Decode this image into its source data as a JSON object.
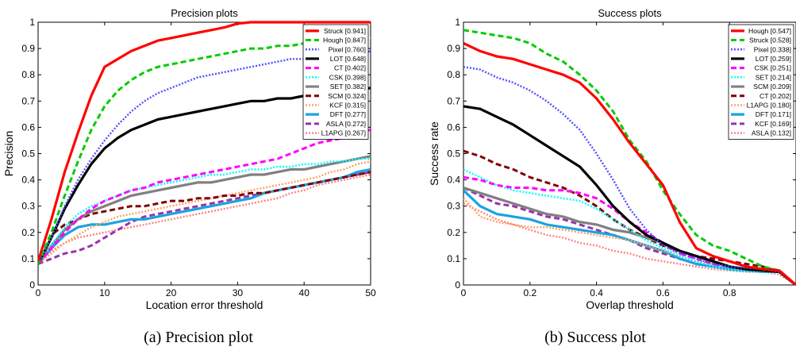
{
  "captions": {
    "a": "(a) Precision plot",
    "b": "(b) Success plot"
  },
  "chart_data": [
    {
      "type": "line",
      "title": "Precision plots",
      "xlabel": "Location error threshold",
      "ylabel": "Precision",
      "xlim": [
        0,
        50
      ],
      "ylim": [
        0,
        1
      ],
      "xticks": [
        0,
        10,
        20,
        30,
        40,
        50
      ],
      "yticks": [
        0,
        0.1,
        0.2,
        0.3,
        0.4,
        0.5,
        0.6,
        0.7,
        0.8,
        0.9,
        1
      ],
      "grid": false,
      "legend_position": "top-right",
      "x": [
        0,
        2,
        4,
        6,
        8,
        10,
        12,
        14,
        16,
        18,
        20,
        22,
        24,
        26,
        28,
        30,
        32,
        34,
        36,
        38,
        40,
        42,
        44,
        46,
        48,
        50
      ],
      "series": [
        {
          "name": "Struck [0.941]",
          "color": "#ff0000",
          "dash": "solid",
          "width": 3.2,
          "values": [
            0.09,
            0.25,
            0.43,
            0.58,
            0.72,
            0.83,
            0.86,
            0.89,
            0.91,
            0.93,
            0.94,
            0.95,
            0.96,
            0.97,
            0.98,
            0.995,
            1.0,
            1.0,
            1.0,
            1.0,
            1.0,
            1.0,
            1.0,
            1.0,
            1.0,
            1.0
          ]
        },
        {
          "name": "Hough [0.847]",
          "color": "#00cc00",
          "dash": "dashed",
          "width": 3,
          "values": [
            0.08,
            0.2,
            0.34,
            0.47,
            0.59,
            0.68,
            0.74,
            0.78,
            0.81,
            0.83,
            0.84,
            0.85,
            0.86,
            0.87,
            0.88,
            0.89,
            0.9,
            0.9,
            0.91,
            0.91,
            0.92,
            0.92,
            0.93,
            0.93,
            0.94,
            0.94
          ]
        },
        {
          "name": "Pixel [0.760]",
          "color": "#5050ff",
          "dash": "dotted",
          "width": 2.4,
          "values": [
            0.08,
            0.18,
            0.3,
            0.4,
            0.48,
            0.55,
            0.61,
            0.66,
            0.7,
            0.73,
            0.75,
            0.77,
            0.79,
            0.8,
            0.81,
            0.82,
            0.83,
            0.84,
            0.85,
            0.86,
            0.86,
            0.87,
            0.87,
            0.88,
            0.88,
            0.89
          ]
        },
        {
          "name": "LOT [0.648]",
          "color": "#000000",
          "dash": "solid",
          "width": 3.2,
          "values": [
            0.08,
            0.18,
            0.29,
            0.38,
            0.46,
            0.52,
            0.56,
            0.59,
            0.61,
            0.63,
            0.64,
            0.65,
            0.66,
            0.67,
            0.68,
            0.69,
            0.7,
            0.7,
            0.71,
            0.71,
            0.72,
            0.72,
            0.73,
            0.73,
            0.74,
            0.75
          ]
        },
        {
          "name": "CT [0.402]",
          "color": "#ff00ff",
          "dash": "dashed",
          "width": 3,
          "values": [
            0.08,
            0.14,
            0.2,
            0.25,
            0.29,
            0.32,
            0.34,
            0.36,
            0.37,
            0.39,
            0.4,
            0.41,
            0.42,
            0.43,
            0.44,
            0.45,
            0.46,
            0.47,
            0.48,
            0.5,
            0.52,
            0.54,
            0.55,
            0.56,
            0.58,
            0.59
          ]
        },
        {
          "name": "CSK [0.398]",
          "color": "#00ffff",
          "dash": "dotted",
          "width": 2.4,
          "values": [
            0.08,
            0.15,
            0.22,
            0.27,
            0.3,
            0.32,
            0.34,
            0.36,
            0.37,
            0.38,
            0.39,
            0.4,
            0.41,
            0.42,
            0.42,
            0.43,
            0.44,
            0.44,
            0.45,
            0.45,
            0.46,
            0.46,
            0.47,
            0.47,
            0.48,
            0.48
          ]
        },
        {
          "name": "SET [0.382]",
          "color": "#808080",
          "dash": "solid",
          "width": 3.2,
          "values": [
            0.08,
            0.15,
            0.21,
            0.25,
            0.28,
            0.3,
            0.32,
            0.34,
            0.35,
            0.36,
            0.37,
            0.38,
            0.39,
            0.39,
            0.4,
            0.41,
            0.42,
            0.42,
            0.43,
            0.44,
            0.44,
            0.45,
            0.46,
            0.47,
            0.48,
            0.49
          ]
        },
        {
          "name": "SCM [0.324]",
          "color": "#800000",
          "dash": "dashed",
          "width": 3,
          "values": [
            0.08,
            0.19,
            0.23,
            0.25,
            0.27,
            0.28,
            0.29,
            0.3,
            0.3,
            0.31,
            0.32,
            0.32,
            0.33,
            0.33,
            0.34,
            0.34,
            0.35,
            0.35,
            0.36,
            0.37,
            0.38,
            0.39,
            0.4,
            0.41,
            0.42,
            0.43
          ]
        },
        {
          "name": "KCF [0.315]",
          "color": "#ffa060",
          "dash": "dotted",
          "width": 2.4,
          "values": [
            0.08,
            0.12,
            0.16,
            0.19,
            0.22,
            0.24,
            0.26,
            0.27,
            0.28,
            0.29,
            0.3,
            0.31,
            0.32,
            0.33,
            0.34,
            0.35,
            0.36,
            0.37,
            0.38,
            0.39,
            0.4,
            0.41,
            0.43,
            0.44,
            0.46,
            0.47
          ]
        },
        {
          "name": "DFT [0.277]",
          "color": "#1aa3e0",
          "dash": "solid",
          "width": 3.2,
          "values": [
            0.08,
            0.14,
            0.19,
            0.22,
            0.23,
            0.23,
            0.24,
            0.25,
            0.25,
            0.26,
            0.27,
            0.28,
            0.29,
            0.3,
            0.31,
            0.32,
            0.33,
            0.35,
            0.36,
            0.37,
            0.38,
            0.39,
            0.4,
            0.41,
            0.43,
            0.44
          ]
        },
        {
          "name": "ASLA [0.272]",
          "color": "#9933aa",
          "dash": "dashed",
          "width": 3,
          "values": [
            0.08,
            0.1,
            0.12,
            0.13,
            0.15,
            0.18,
            0.21,
            0.24,
            0.26,
            0.27,
            0.28,
            0.29,
            0.3,
            0.31,
            0.32,
            0.33,
            0.34,
            0.35,
            0.36,
            0.37,
            0.38,
            0.39,
            0.4,
            0.41,
            0.42,
            0.43
          ]
        },
        {
          "name": "L1APG [0.267]",
          "color": "#ff8080",
          "dash": "dotted",
          "width": 2.4,
          "values": [
            0.08,
            0.13,
            0.16,
            0.18,
            0.19,
            0.2,
            0.21,
            0.22,
            0.23,
            0.24,
            0.25,
            0.26,
            0.27,
            0.28,
            0.29,
            0.3,
            0.31,
            0.32,
            0.33,
            0.35,
            0.36,
            0.38,
            0.39,
            0.4,
            0.41,
            0.42
          ]
        }
      ]
    },
    {
      "type": "line",
      "title": "Success plots",
      "xlabel": "Overlap threshold",
      "ylabel": "Success rate",
      "xlim": [
        0,
        1
      ],
      "ylim": [
        0,
        1
      ],
      "xticks": [
        0,
        0.2,
        0.4,
        0.6,
        0.8
      ],
      "yticks": [
        0,
        0.1,
        0.2,
        0.3,
        0.4,
        0.5,
        0.6,
        0.7,
        0.8,
        0.9,
        1
      ],
      "grid": false,
      "legend_position": "top-right",
      "x": [
        0,
        0.05,
        0.1,
        0.15,
        0.2,
        0.25,
        0.3,
        0.35,
        0.4,
        0.45,
        0.5,
        0.55,
        0.6,
        0.65,
        0.7,
        0.75,
        0.8,
        0.85,
        0.9,
        0.95,
        1.0
      ],
      "series": [
        {
          "name": "Hough [0.547]",
          "color": "#ff0000",
          "dash": "solid",
          "width": 3.2,
          "values": [
            0.92,
            0.89,
            0.87,
            0.86,
            0.84,
            0.82,
            0.8,
            0.77,
            0.71,
            0.63,
            0.54,
            0.46,
            0.38,
            0.24,
            0.14,
            0.11,
            0.09,
            0.07,
            0.06,
            0.055,
            0.0
          ]
        },
        {
          "name": "Struck [0.528]",
          "color": "#00cc00",
          "dash": "dashed",
          "width": 3,
          "values": [
            0.97,
            0.96,
            0.95,
            0.94,
            0.92,
            0.88,
            0.85,
            0.8,
            0.74,
            0.66,
            0.55,
            0.47,
            0.36,
            0.27,
            0.19,
            0.15,
            0.13,
            0.1,
            0.07,
            0.055,
            0.0
          ]
        },
        {
          "name": "Pixel [0.338]",
          "color": "#5050ff",
          "dash": "dotted",
          "width": 2.4,
          "values": [
            0.83,
            0.82,
            0.79,
            0.77,
            0.74,
            0.7,
            0.65,
            0.59,
            0.5,
            0.4,
            0.29,
            0.21,
            0.15,
            0.12,
            0.1,
            0.08,
            0.07,
            0.065,
            0.06,
            0.05,
            0.0
          ]
        },
        {
          "name": "LOT [0.259]",
          "color": "#000000",
          "dash": "solid",
          "width": 3.2,
          "values": [
            0.68,
            0.67,
            0.64,
            0.61,
            0.57,
            0.53,
            0.49,
            0.45,
            0.38,
            0.3,
            0.24,
            0.19,
            0.16,
            0.13,
            0.11,
            0.09,
            0.07,
            0.06,
            0.055,
            0.05,
            0.0
          ]
        },
        {
          "name": "CSK [0.251]",
          "color": "#ff00ff",
          "dash": "dashed",
          "width": 3,
          "values": [
            0.41,
            0.4,
            0.38,
            0.37,
            0.37,
            0.36,
            0.36,
            0.35,
            0.33,
            0.29,
            0.24,
            0.2,
            0.16,
            0.12,
            0.1,
            0.08,
            0.07,
            0.06,
            0.055,
            0.05,
            0.0
          ]
        },
        {
          "name": "SET [0.214]",
          "color": "#00ffff",
          "dash": "dotted",
          "width": 2.4,
          "values": [
            0.44,
            0.41,
            0.38,
            0.36,
            0.35,
            0.34,
            0.33,
            0.32,
            0.29,
            0.25,
            0.21,
            0.17,
            0.14,
            0.11,
            0.09,
            0.07,
            0.06,
            0.055,
            0.05,
            0.05,
            0.0
          ]
        },
        {
          "name": "SCM [0.209]",
          "color": "#808080",
          "dash": "solid",
          "width": 3.2,
          "values": [
            0.37,
            0.35,
            0.33,
            0.31,
            0.29,
            0.27,
            0.26,
            0.24,
            0.23,
            0.21,
            0.2,
            0.18,
            0.16,
            0.13,
            0.11,
            0.09,
            0.07,
            0.06,
            0.055,
            0.05,
            0.0
          ]
        },
        {
          "name": "CT [0.202]",
          "color": "#800000",
          "dash": "dashed",
          "width": 3,
          "values": [
            0.51,
            0.49,
            0.46,
            0.44,
            0.41,
            0.39,
            0.37,
            0.34,
            0.3,
            0.25,
            0.21,
            0.18,
            0.15,
            0.13,
            0.11,
            0.1,
            0.09,
            0.08,
            0.07,
            0.05,
            0.0
          ]
        },
        {
          "name": "L1APG [0.180]",
          "color": "#ffa060",
          "dash": "dotted",
          "width": 2.4,
          "values": [
            0.33,
            0.26,
            0.24,
            0.23,
            0.22,
            0.22,
            0.21,
            0.2,
            0.19,
            0.18,
            0.17,
            0.15,
            0.13,
            0.11,
            0.09,
            0.08,
            0.07,
            0.06,
            0.055,
            0.05,
            0.0
          ]
        },
        {
          "name": "DFT [0.171]",
          "color": "#1aa3e0",
          "dash": "solid",
          "width": 3.2,
          "values": [
            0.36,
            0.3,
            0.27,
            0.26,
            0.25,
            0.23,
            0.22,
            0.21,
            0.2,
            0.19,
            0.17,
            0.15,
            0.13,
            0.1,
            0.08,
            0.07,
            0.06,
            0.055,
            0.05,
            0.05,
            0.0
          ]
        },
        {
          "name": "KCF [0.169]",
          "color": "#9933aa",
          "dash": "dashed",
          "width": 3,
          "values": [
            0.37,
            0.34,
            0.31,
            0.3,
            0.28,
            0.26,
            0.25,
            0.23,
            0.21,
            0.19,
            0.17,
            0.14,
            0.12,
            0.1,
            0.08,
            0.07,
            0.06,
            0.055,
            0.05,
            0.05,
            0.0
          ]
        },
        {
          "name": "ASLA [0.132]",
          "color": "#ff8080",
          "dash": "dotted",
          "width": 2.4,
          "values": [
            0.31,
            0.28,
            0.25,
            0.23,
            0.21,
            0.19,
            0.18,
            0.16,
            0.15,
            0.13,
            0.12,
            0.1,
            0.09,
            0.08,
            0.07,
            0.06,
            0.055,
            0.05,
            0.05,
            0.04,
            0.0
          ]
        }
      ]
    }
  ]
}
